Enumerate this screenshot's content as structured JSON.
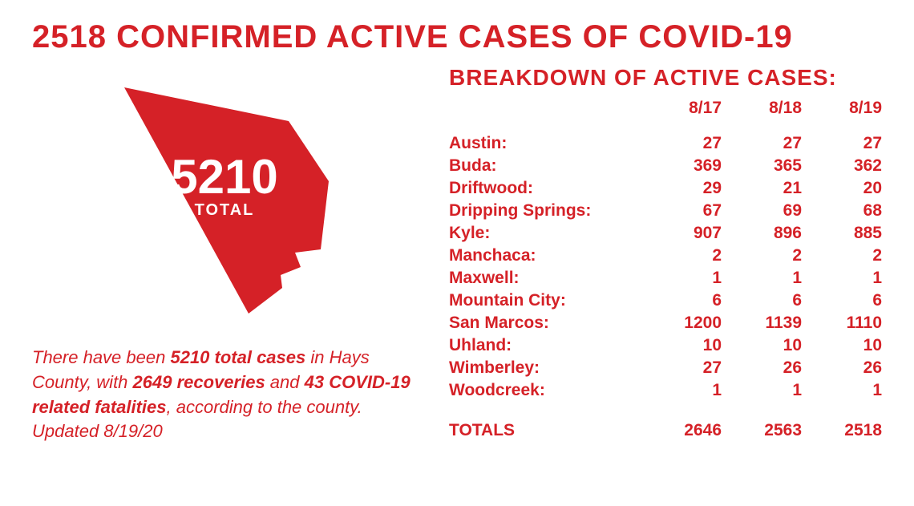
{
  "headline": "2518 CONFIRMED ACTIVE CASES OF COVID-19",
  "colors": {
    "red": "#d52127",
    "white": "#ffffff"
  },
  "county_shape": {
    "total_number": "5210",
    "total_label": "TOTAL",
    "fill": "#d52127"
  },
  "summary": {
    "pre1": "There have been ",
    "bold1": "5210 total cases",
    "mid1": " in Hays County, with ",
    "bold2": "2649 recoveries",
    "mid2": " and ",
    "bold3": "43 COVID-19 related fatalities",
    "post": ", according to the county. Updated 8/19/20"
  },
  "breakdown": {
    "title": "BREAKDOWN OF ACTIVE CASES:",
    "columns": [
      "",
      "8/17",
      "8/18",
      "8/19"
    ],
    "rows": [
      {
        "label": "Austin:",
        "v": [
          "27",
          "27",
          "27"
        ]
      },
      {
        "label": "Buda:",
        "v": [
          "369",
          "365",
          "362"
        ]
      },
      {
        "label": "Driftwood:",
        "v": [
          "29",
          "21",
          "20"
        ]
      },
      {
        "label": "Dripping Springs:",
        "v": [
          "67",
          "69",
          "68"
        ]
      },
      {
        "label": "Kyle:",
        "v": [
          "907",
          "896",
          "885"
        ]
      },
      {
        "label": "Manchaca:",
        "v": [
          "2",
          "2",
          "2"
        ]
      },
      {
        "label": "Maxwell:",
        "v": [
          "1",
          "1",
          "1"
        ]
      },
      {
        "label": "Mountain City:",
        "v": [
          "6",
          "6",
          "6"
        ]
      },
      {
        "label": "San Marcos:",
        "v": [
          "1200",
          "1139",
          "1110"
        ]
      },
      {
        "label": "Uhland:",
        "v": [
          "10",
          "10",
          "10"
        ]
      },
      {
        "label": "Wimberley:",
        "v": [
          "27",
          "26",
          "26"
        ]
      },
      {
        "label": "Woodcreek:",
        "v": [
          "1",
          "1",
          "1"
        ]
      }
    ],
    "totals": {
      "label": "TOTALS",
      "v": [
        "2646",
        "2563",
        "2518"
      ]
    }
  }
}
